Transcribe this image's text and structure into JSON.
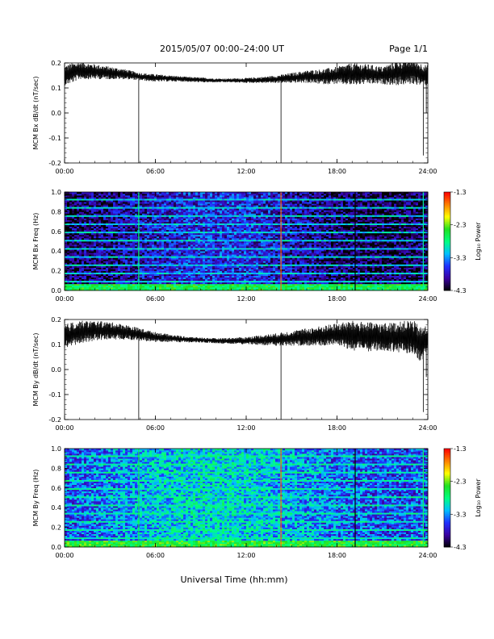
{
  "header": {
    "title": "2015/05/07  00:00–24:00 UT",
    "page": "Page 1/1"
  },
  "footer": {
    "xlabel": "Universal Time (hh:mm)"
  },
  "colorbar": {
    "title": "Log₁₀ Power",
    "ticks": [
      "-1.3",
      "-2.3",
      "-3.3",
      "-4.3"
    ],
    "range": [
      -4.3,
      -1.3
    ],
    "stops": [
      "#000000",
      "#3a00a0",
      "#1f2fff",
      "#00c0ff",
      "#00ff80",
      "#20e020",
      "#ffff00",
      "#ff8000",
      "#ff0000"
    ]
  },
  "chart_data": [
    {
      "type": "line",
      "title": "",
      "ylabel": "MCM Bx dB/dt (nT/sec)",
      "xlabel": "",
      "xticks": [
        "00:00",
        "06:00",
        "12:00",
        "18:00",
        "24:00"
      ],
      "xlim": [
        0,
        24
      ],
      "ylim": [
        -0.2,
        0.2
      ],
      "yticks": [
        "-0.2",
        "-0.1",
        "0.0",
        "0.1",
        "0.2"
      ],
      "series": [
        {
          "x": [
            0,
            0.5,
            1,
            2,
            3,
            4,
            5,
            6,
            7,
            8,
            9,
            10,
            11,
            12,
            13,
            14,
            15,
            16,
            17,
            18,
            19,
            20,
            21,
            22,
            23,
            23.5,
            24
          ],
          "values": [
            0.15,
            0.16,
            0.17,
            0.165,
            0.16,
            0.155,
            0.145,
            0.14,
            0.138,
            0.135,
            0.132,
            0.13,
            0.13,
            0.13,
            0.132,
            0.135,
            0.14,
            0.145,
            0.145,
            0.15,
            0.155,
            0.155,
            0.15,
            0.16,
            0.165,
            0.155,
            0.15
          ],
          "noise": [
            0.04,
            0.04,
            0.035,
            0.03,
            0.025,
            0.02,
            0.015,
            0.015,
            0.012,
            0.01,
            0.01,
            0.008,
            0.008,
            0.01,
            0.012,
            0.015,
            0.02,
            0.025,
            0.03,
            0.035,
            0.045,
            0.04,
            0.035,
            0.05,
            0.05,
            0.045,
            0.04
          ]
        }
      ],
      "spikes": [
        {
          "x": 4.9,
          "y": -0.2
        },
        {
          "x": 14.3,
          "y": -0.2
        },
        {
          "x": 23.7,
          "y": -0.17
        },
        {
          "x": 23.9,
          "y": 0.0
        }
      ]
    },
    {
      "type": "heatmap",
      "title": "",
      "ylabel": "MCM Bx Freq (Hz)",
      "xlabel": "",
      "xticks": [
        "00:00",
        "06:00",
        "12:00",
        "18:00",
        "24:00"
      ],
      "xlim": [
        0,
        24
      ],
      "ylim": [
        0.0,
        1.0
      ],
      "yticks": [
        "0.0",
        "0.2",
        "0.4",
        "0.6",
        "0.8",
        "1.0"
      ],
      "zlim": [
        -4.3,
        -1.3
      ],
      "base_power": -3.9,
      "low_freq_power": -2.6,
      "harmonic_spacing_hz": 0.0833,
      "harmonic_power": -3.1,
      "vertical_lines": [
        {
          "x": 4.9,
          "power": -2.8
        },
        {
          "x": 14.3,
          "power": -1.6
        },
        {
          "x": 19.2,
          "power": -4.3
        },
        {
          "x": 23.7,
          "power": -2.9
        }
      ]
    },
    {
      "type": "line",
      "title": "",
      "ylabel": "MCM By dB/dt (nT/sec)",
      "xlabel": "",
      "xticks": [
        "00:00",
        "06:00",
        "12:00",
        "18:00",
        "24:00"
      ],
      "xlim": [
        0,
        24
      ],
      "ylim": [
        -0.2,
        0.2
      ],
      "yticks": [
        "-0.2",
        "-0.1",
        "0.0",
        "0.1",
        "0.2"
      ],
      "series": [
        {
          "x": [
            0,
            0.5,
            1,
            2,
            3,
            4,
            5,
            6,
            7,
            8,
            9,
            10,
            11,
            12,
            13,
            14,
            15,
            16,
            17,
            18,
            19,
            20,
            21,
            22,
            23,
            23.5,
            24
          ],
          "values": [
            0.13,
            0.14,
            0.15,
            0.155,
            0.155,
            0.15,
            0.14,
            0.13,
            0.125,
            0.12,
            0.118,
            0.115,
            0.115,
            0.115,
            0.118,
            0.12,
            0.125,
            0.13,
            0.135,
            0.14,
            0.135,
            0.13,
            0.13,
            0.13,
            0.13,
            0.1,
            0.12
          ],
          "noise": [
            0.05,
            0.05,
            0.045,
            0.04,
            0.035,
            0.03,
            0.025,
            0.02,
            0.015,
            0.012,
            0.01,
            0.01,
            0.012,
            0.015,
            0.02,
            0.025,
            0.03,
            0.035,
            0.04,
            0.045,
            0.06,
            0.06,
            0.055,
            0.06,
            0.07,
            0.07,
            0.06
          ]
        }
      ],
      "spikes": [
        {
          "x": 4.9,
          "y": -0.2
        },
        {
          "x": 14.3,
          "y": -0.2
        },
        {
          "x": 23.7,
          "y": -0.17
        },
        {
          "x": 23.9,
          "y": -0.03
        }
      ]
    },
    {
      "type": "heatmap",
      "title": "",
      "ylabel": "MCM By Freq (Hz)",
      "xlabel": "",
      "xticks": [
        "00:00",
        "06:00",
        "12:00",
        "18:00",
        "24:00"
      ],
      "xlim": [
        0,
        24
      ],
      "ylim": [
        0.0,
        1.0
      ],
      "yticks": [
        "0.0",
        "0.2",
        "0.4",
        "0.6",
        "0.8",
        "1.0"
      ],
      "zlim": [
        -4.3,
        -1.3
      ],
      "base_power": -3.3,
      "low_freq_power": -2.5,
      "harmonic_spacing_hz": 0.0833,
      "harmonic_power": -2.9,
      "vertical_lines": [
        {
          "x": 4.9,
          "power": -2.6
        },
        {
          "x": 14.3,
          "power": -1.6
        },
        {
          "x": 19.2,
          "power": -4.3
        },
        {
          "x": 23.7,
          "power": -2.7
        }
      ]
    }
  ]
}
